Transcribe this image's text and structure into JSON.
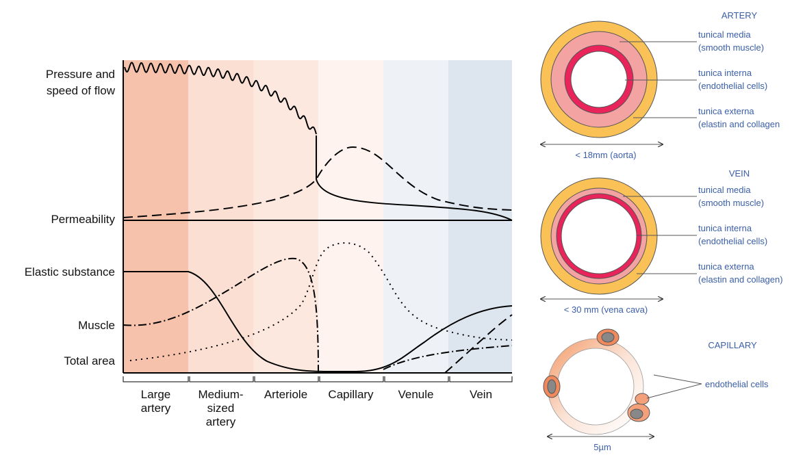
{
  "graph": {
    "row_labels": {
      "pressure": [
        "Pressure and",
        "speed of flow"
      ],
      "permeability": "Permeability",
      "elastic": "Elastic substance",
      "muscle": "Muscle",
      "total_area": "Total area"
    },
    "categories": [
      [
        "Large",
        "artery"
      ],
      [
        "Medium-",
        "sized",
        "artery"
      ],
      [
        "Arteriole"
      ],
      [
        "Capillary"
      ],
      [
        "Venule"
      ],
      [
        "Vein"
      ]
    ]
  },
  "vessels": [
    {
      "title": "ARTERY",
      "labels": [
        [
          "tunical media",
          "(smooth muscle)"
        ],
        [
          "tunica interna",
          "(endothelial cells)"
        ],
        [
          "tunica externa",
          "(elastin and collagen"
        ]
      ],
      "size": "< 18mm (aorta)"
    },
    {
      "title": "VEIN",
      "labels": [
        [
          "tunical media",
          "(smooth muscle)"
        ],
        [
          "tunica interna",
          "(endothelial cells)"
        ],
        [
          "tunica externa",
          "(elastin and collagen)"
        ]
      ],
      "size": "< 30 mm (vena cava)"
    },
    {
      "title": "CAPILLARY",
      "labels": [
        [
          "endothelial cells"
        ]
      ],
      "size": "5µm"
    }
  ]
}
